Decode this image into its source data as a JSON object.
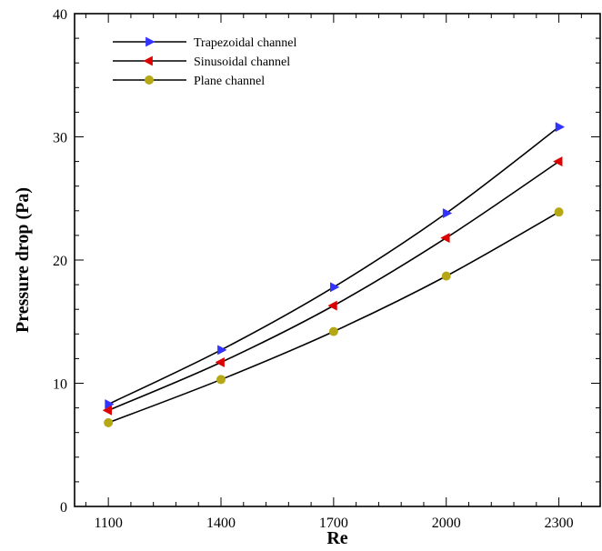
{
  "chart_data": {
    "type": "line",
    "title": "",
    "xlabel": "Re",
    "ylabel": "Pressure drop (Pa)",
    "x": [
      1100,
      1400,
      1700,
      2000,
      2300
    ],
    "xlim": [
      1010,
      2410
    ],
    "ylim": [
      0,
      40
    ],
    "yticks": [
      0,
      10,
      20,
      30,
      40
    ],
    "grid": false,
    "legend": "top-left",
    "series": [
      {
        "name": "Trapezoidal channel",
        "marker": "triangle-right",
        "color": "#3333ff",
        "values": [
          8.3,
          12.7,
          17.8,
          23.8,
          30.8
        ]
      },
      {
        "name": "Sinusoidal channel",
        "marker": "triangle-left",
        "color": "#dd0000",
        "values": [
          7.8,
          11.7,
          16.3,
          21.8,
          28.0
        ]
      },
      {
        "name": "Plane channel",
        "marker": "circle",
        "color": "#b5a814",
        "values": [
          6.8,
          10.3,
          14.2,
          18.7,
          23.9
        ]
      }
    ]
  }
}
